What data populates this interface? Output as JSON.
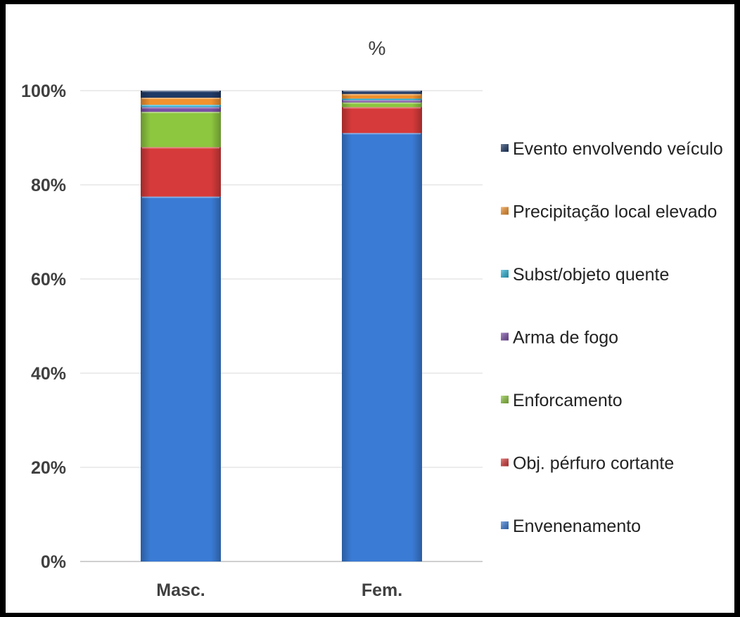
{
  "chart_data": {
    "type": "bar",
    "stacked": "percent",
    "title": "%",
    "categories": [
      "Masc.",
      "Fem."
    ],
    "ylim": [
      0,
      100
    ],
    "yticks": [
      "0%",
      "20%",
      "40%",
      "60%",
      "80%",
      "100%"
    ],
    "grid": true,
    "legend_position": "right",
    "series": [
      {
        "name": "Envenenamento",
        "values": [
          77.5,
          91.0
        ],
        "color": "#3a7bd5"
      },
      {
        "name": "Obj. pérfuro cortante",
        "values": [
          10.5,
          5.5
        ],
        "color": "#d63a3a"
      },
      {
        "name": "Enforcamento",
        "values": [
          7.5,
          1.0
        ],
        "color": "#8dc63f"
      },
      {
        "name": "Arma de fogo",
        "values": [
          1.0,
          0.5
        ],
        "color": "#7b4fa6"
      },
      {
        "name": "Subst/objeto quente",
        "values": [
          0.5,
          0.3
        ],
        "color": "#2bb3d6"
      },
      {
        "name": "Precipitação local elevado",
        "values": [
          1.5,
          1.0
        ],
        "color": "#f0922e"
      },
      {
        "name": "Evento envolvendo veículo",
        "values": [
          1.5,
          0.7
        ],
        "color": "#1f3a66"
      }
    ]
  }
}
